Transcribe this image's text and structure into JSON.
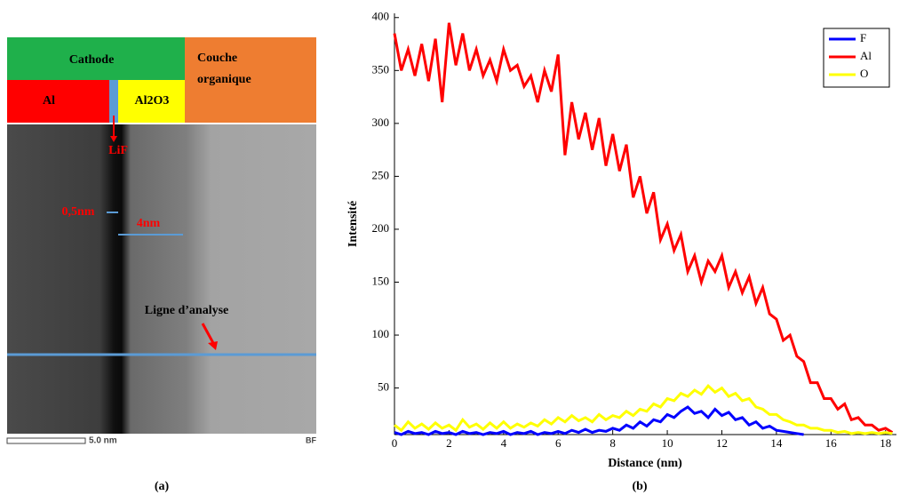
{
  "image_panel": {
    "cathode": "Cathode",
    "organic": "Couche\norganique",
    "al": "Al",
    "al2o3": "Al2O3",
    "lif": "LiF",
    "thin": "0,5nm",
    "thick": "4nm",
    "line": "Ligne d’analyse",
    "scale": "5.0 nm",
    "mode": "BF",
    "caption": "(a)"
  },
  "chart_data": {
    "type": "line",
    "caption": "(b)",
    "x_label": "Distance (nm)",
    "y_label": "Intensité",
    "xlim": [
      0,
      18.4
    ],
    "ylim": [
      6,
      404
    ],
    "xticks": [
      0,
      2,
      4,
      6,
      8,
      10,
      12,
      14,
      16,
      18
    ],
    "yticks": [
      50,
      100,
      150,
      200,
      250,
      300,
      350,
      400
    ],
    "legend": "upper right",
    "grid": false,
    "x": [
      0,
      0.25,
      0.5,
      0.75,
      1,
      1.25,
      1.5,
      1.75,
      2,
      2.25,
      2.5,
      2.75,
      3,
      3.25,
      3.5,
      3.75,
      4,
      4.25,
      4.5,
      4.75,
      5,
      5.25,
      5.5,
      5.75,
      6,
      6.25,
      6.5,
      6.75,
      7,
      7.25,
      7.5,
      7.75,
      8,
      8.25,
      8.5,
      8.75,
      9,
      9.25,
      9.5,
      9.75,
      10,
      10.25,
      10.5,
      10.75,
      11,
      11.25,
      11.5,
      11.75,
      12,
      12.25,
      12.5,
      12.75,
      13,
      13.25,
      13.5,
      13.75,
      14,
      14.25,
      14.5,
      14.75,
      15,
      15.25,
      15.5,
      15.75,
      16,
      16.25,
      16.5,
      16.75,
      17,
      17.25,
      17.5,
      17.75,
      18,
      18.25
    ],
    "series": [
      {
        "name": "F",
        "color": "#0000ff",
        "values": [
          8,
          6,
          9,
          7,
          8,
          6,
          9,
          7,
          8,
          6,
          9,
          7,
          8,
          6,
          8,
          7,
          9,
          6,
          8,
          7,
          9,
          6,
          8,
          7,
          9,
          7,
          10,
          8,
          11,
          8,
          10,
          9,
          12,
          10,
          15,
          12,
          18,
          14,
          20,
          18,
          25,
          22,
          28,
          32,
          26,
          28,
          22,
          30,
          24,
          27,
          20,
          22,
          15,
          18,
          12,
          14,
          10,
          9,
          8,
          7,
          6,
          null,
          null,
          null,
          null,
          null,
          null,
          null,
          null,
          null,
          null,
          null,
          null,
          null
        ]
      },
      {
        "name": "Al",
        "color": "#ff0000",
        "values": [
          385,
          350,
          370,
          345,
          375,
          340,
          380,
          320,
          395,
          355,
          385,
          350,
          370,
          345,
          360,
          340,
          370,
          350,
          355,
          335,
          345,
          320,
          350,
          330,
          365,
          270,
          320,
          285,
          310,
          275,
          305,
          260,
          290,
          255,
          280,
          230,
          250,
          215,
          235,
          190,
          205,
          180,
          195,
          160,
          175,
          150,
          170,
          160,
          175,
          145,
          160,
          140,
          155,
          130,
          145,
          120,
          115,
          95,
          100,
          80,
          75,
          55,
          55,
          40,
          40,
          30,
          35,
          20,
          22,
          15,
          15,
          10,
          12,
          8
        ]
      },
      {
        "name": "O",
        "color": "#ffff00",
        "values": [
          15,
          10,
          18,
          12,
          16,
          11,
          17,
          12,
          15,
          10,
          20,
          13,
          16,
          11,
          17,
          12,
          18,
          12,
          16,
          13,
          17,
          14,
          20,
          16,
          22,
          18,
          24,
          19,
          22,
          18,
          25,
          20,
          24,
          22,
          28,
          24,
          30,
          28,
          35,
          32,
          40,
          38,
          45,
          42,
          48,
          44,
          52,
          46,
          50,
          42,
          45,
          38,
          40,
          32,
          30,
          25,
          25,
          20,
          18,
          15,
          15,
          12,
          12,
          10,
          10,
          8,
          9,
          7,
          8,
          7,
          8,
          7,
          8,
          7
        ]
      }
    ]
  }
}
